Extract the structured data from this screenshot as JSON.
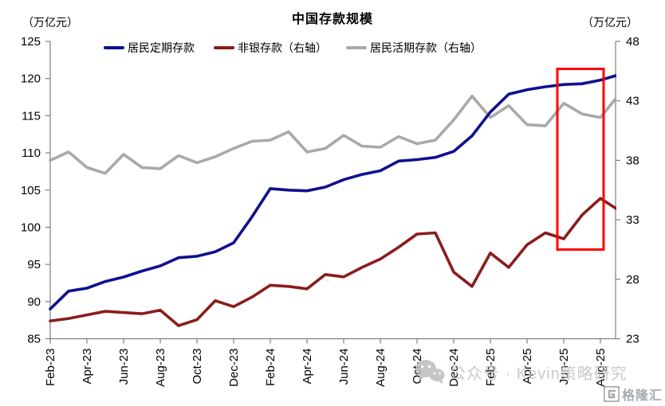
{
  "title": "中国存款规模",
  "axis_unit_left": "（万亿元）",
  "axis_unit_right": "（万亿元）",
  "watermark": {
    "text": "公众号 · Kevin策略研究",
    "brand": "格隆汇"
  },
  "legend": {
    "items": [
      {
        "label": "居民定期存款"
      },
      {
        "label": "非银存款（右轴）"
      },
      {
        "label": "居民活期存款（右轴）"
      }
    ]
  },
  "chart_data": {
    "type": "line",
    "grid": false,
    "legend_position": "top",
    "categories": [
      "Feb-23",
      "Mar-23",
      "Apr-23",
      "May-23",
      "Jun-23",
      "Jul-23",
      "Aug-23",
      "Sep-23",
      "Oct-23",
      "Nov-23",
      "Dec-23",
      "Jan-24",
      "Feb-24",
      "Mar-24",
      "Apr-24",
      "May-24",
      "Jun-24",
      "Jul-24",
      "Aug-24",
      "Sep-24",
      "Oct-24",
      "Nov-24",
      "Dec-24",
      "Jan-25",
      "Feb-25",
      "Mar-25",
      "Apr-25",
      "May-25",
      "Jun-25",
      "Jul-25",
      "Aug-25",
      "Sep-25"
    ],
    "x_tick_labels": [
      "Feb-23",
      "Apr-23",
      "Jun-23",
      "Aug-23",
      "Oct-23",
      "Dec-23",
      "Feb-24",
      "Apr-24",
      "Jun-24",
      "Aug-24",
      "Oct-24",
      "Dec-24",
      "Feb-25",
      "Apr-25",
      "Jun-25",
      "Aug-25"
    ],
    "y_left": {
      "min": 85,
      "max": 125,
      "ticks": [
        125,
        120,
        115,
        110,
        105,
        100,
        95,
        90,
        85
      ]
    },
    "y_right": {
      "min": 23,
      "max": 48,
      "ticks": [
        48,
        43,
        38,
        33,
        28,
        23
      ]
    },
    "series": [
      {
        "name": "居民定期存款",
        "axis": "left",
        "color": "#10108f",
        "values": [
          89.0,
          91.4,
          91.8,
          92.7,
          93.3,
          94.1,
          94.8,
          95.9,
          96.1,
          96.7,
          97.9,
          101.4,
          105.2,
          105.0,
          104.9,
          105.4,
          106.4,
          107.1,
          107.6,
          108.9,
          109.1,
          109.4,
          110.2,
          112.3,
          115.5,
          117.9,
          118.5,
          118.9,
          119.2,
          119.3,
          119.8,
          120.5
        ]
      },
      {
        "name": "非银存款（右轴）",
        "axis": "right",
        "color": "#8b1c1c",
        "values": [
          24.5,
          24.7,
          25.0,
          25.3,
          25.2,
          25.1,
          25.4,
          24.1,
          24.6,
          26.2,
          25.7,
          26.5,
          27.5,
          27.4,
          27.2,
          28.4,
          28.2,
          29.0,
          29.7,
          30.7,
          31.8,
          31.9,
          28.6,
          27.4,
          30.2,
          29.0,
          30.9,
          31.9,
          31.4,
          33.4,
          34.8,
          33.8
        ]
      },
      {
        "name": "居民活期存款（右轴）",
        "axis": "right",
        "color": "#a9a9a9",
        "values": [
          38.0,
          38.7,
          37.4,
          36.9,
          38.5,
          37.4,
          37.3,
          38.4,
          37.8,
          38.3,
          39.0,
          39.6,
          39.7,
          40.4,
          38.7,
          39.0,
          40.1,
          39.2,
          39.1,
          40.0,
          39.4,
          39.7,
          41.4,
          43.4,
          41.6,
          42.6,
          41.0,
          40.9,
          42.8,
          41.9,
          41.6,
          43.5
        ]
      }
    ],
    "highlight_box": {
      "x_from": "Jun-25",
      "x_to": "Aug-25",
      "y_left_from": 97.0,
      "y_left_to": 121.3,
      "color": "#ff0000"
    }
  }
}
